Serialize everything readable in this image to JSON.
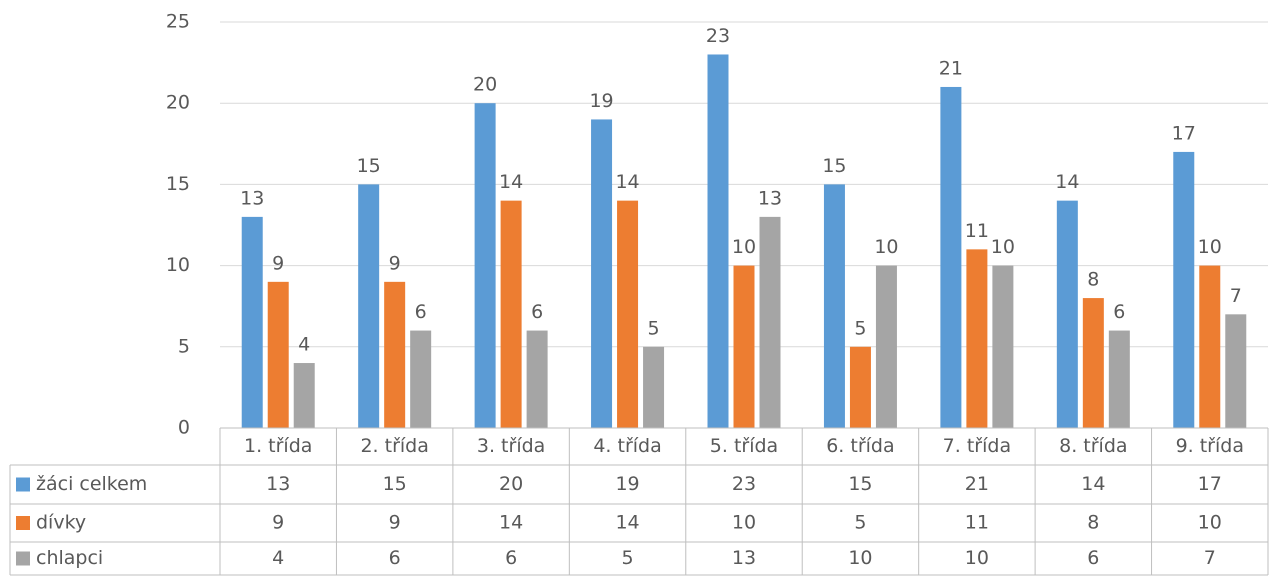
{
  "chart_data": {
    "type": "bar",
    "categories": [
      "1. třída",
      "2. třída",
      "3. třída",
      "4. třída",
      "5. třída",
      "6. třída",
      "7. třída",
      "8. třída",
      "9. třída"
    ],
    "series": [
      {
        "name": "žáci celkem",
        "color": "#5b9bd5",
        "values": [
          13,
          15,
          20,
          19,
          23,
          15,
          21,
          14,
          17
        ]
      },
      {
        "name": "dívky",
        "color": "#ed7d31",
        "values": [
          9,
          9,
          14,
          14,
          10,
          5,
          11,
          8,
          10
        ]
      },
      {
        "name": "chlapci",
        "color": "#a5a5a5",
        "values": [
          4,
          6,
          6,
          5,
          13,
          10,
          10,
          6,
          7
        ]
      }
    ],
    "ylim": [
      0,
      25
    ],
    "yticks": [
      0,
      5,
      10,
      15,
      20,
      25
    ],
    "grid": true,
    "data_table": true
  }
}
